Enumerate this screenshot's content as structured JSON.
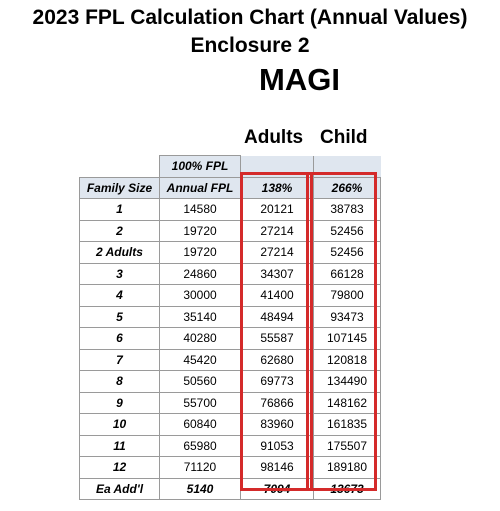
{
  "title": "2023 FPL Calculation Chart (Annual Values)",
  "subtitle": "Enclosure 2",
  "section": "MAGI",
  "col_headers": {
    "adults": "Adults",
    "child": "Child"
  },
  "table": {
    "top_label": "100% FPL",
    "headers": [
      "Family Size",
      "Annual FPL",
      "138%",
      "266%"
    ],
    "rows": [
      [
        "1",
        "14580",
        "20121",
        "38783"
      ],
      [
        "2",
        "19720",
        "27214",
        "52456"
      ],
      [
        "2 Adults",
        "19720",
        "27214",
        "52456"
      ],
      [
        "3",
        "24860",
        "34307",
        "66128"
      ],
      [
        "4",
        "30000",
        "41400",
        "79800"
      ],
      [
        "5",
        "35140",
        "48494",
        "93473"
      ],
      [
        "6",
        "40280",
        "55587",
        "107145"
      ],
      [
        "7",
        "45420",
        "62680",
        "120818"
      ],
      [
        "8",
        "50560",
        "69773",
        "134490"
      ],
      [
        "9",
        "55700",
        "76866",
        "148162"
      ],
      [
        "10",
        "60840",
        "83960",
        "161835"
      ],
      [
        "11",
        "65980",
        "91053",
        "175507"
      ],
      [
        "12",
        "71120",
        "98146",
        "189180"
      ],
      [
        "Ea Add'l",
        "5140",
        "7094",
        "13673"
      ]
    ]
  },
  "colors": {
    "highlight_box": "#d42a2a",
    "header_shade": "#dfe6ef"
  }
}
